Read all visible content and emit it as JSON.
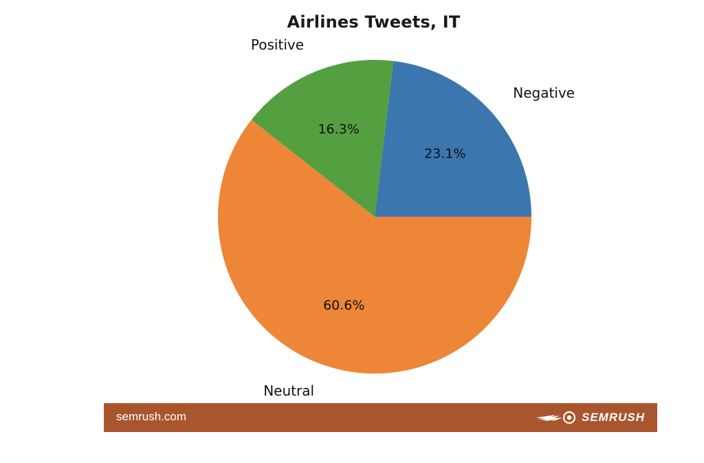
{
  "chart_data": {
    "type": "pie",
    "title": "Airlines Tweets, IT",
    "slices": [
      {
        "label": "Negative",
        "value": 23.1,
        "pct_label": "23.1%",
        "color": "#3c76ae"
      },
      {
        "label": "Positive",
        "value": 16.3,
        "pct_label": "16.3%",
        "color": "#54a040"
      },
      {
        "label": "Neutral",
        "value": 60.6,
        "pct_label": "60.6%",
        "color": "#ed8637"
      }
    ],
    "start_angle_deg": 0,
    "direction": "counterclockwise"
  },
  "footer": {
    "site": "semrush.com",
    "brand": "SEMRUSH",
    "brand_logo_icon": "semrush-fireball-icon",
    "background": "#a9562f"
  }
}
